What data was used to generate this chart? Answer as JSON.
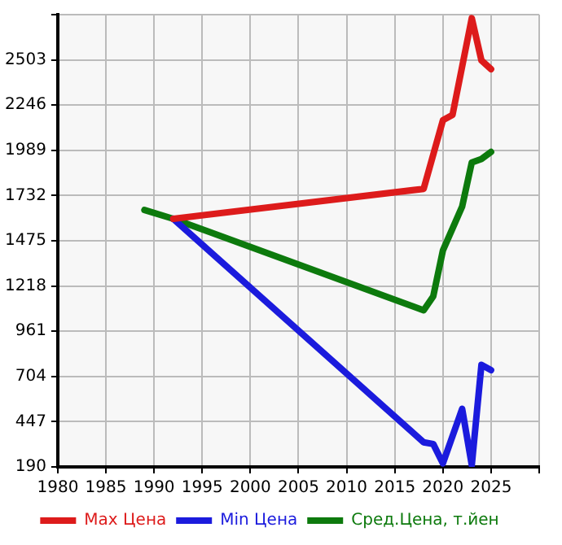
{
  "chart_data": {
    "type": "line",
    "xlim": [
      1980,
      2030
    ],
    "xticks": [
      1980,
      1985,
      1990,
      1995,
      2000,
      2005,
      2010,
      2015,
      2020,
      2025,
      {
        "value": 2030,
        "label": null
      }
    ],
    "ylim": [
      190,
      2760
    ],
    "yticks": [
      190,
      447,
      704,
      961,
      1218,
      1475,
      1732,
      1989,
      2246,
      2503,
      {
        "value": 2760,
        "label": null
      }
    ],
    "grid": true,
    "legend": "bottom",
    "marker": "none",
    "line_style": "solid",
    "series": [
      {
        "name": "Max Цена",
        "color": "#dd1b1b",
        "x": [
          1992,
          2018,
          2020,
          2021,
          2023,
          2024,
          2025
        ],
        "values": [
          1600,
          1770,
          2160,
          2190,
          2740,
          2500,
          2450
        ]
      },
      {
        "name": "Min Цена",
        "color": "#1b1bdd",
        "x": [
          1992,
          2018,
          2019,
          2020,
          2022,
          2023,
          2024,
          2025
        ],
        "values": [
          1600,
          330,
          320,
          210,
          520,
          200,
          770,
          740
        ]
      },
      {
        "name": "Сред.Цена, т.йен",
        "color": "#0d7a0d",
        "x": [
          1989,
          1992,
          2018,
          2019,
          2020,
          2022,
          2023,
          2024,
          2025
        ],
        "values": [
          1650,
          1600,
          1080,
          1160,
          1420,
          1670,
          1920,
          1940,
          1980
        ]
      }
    ]
  }
}
